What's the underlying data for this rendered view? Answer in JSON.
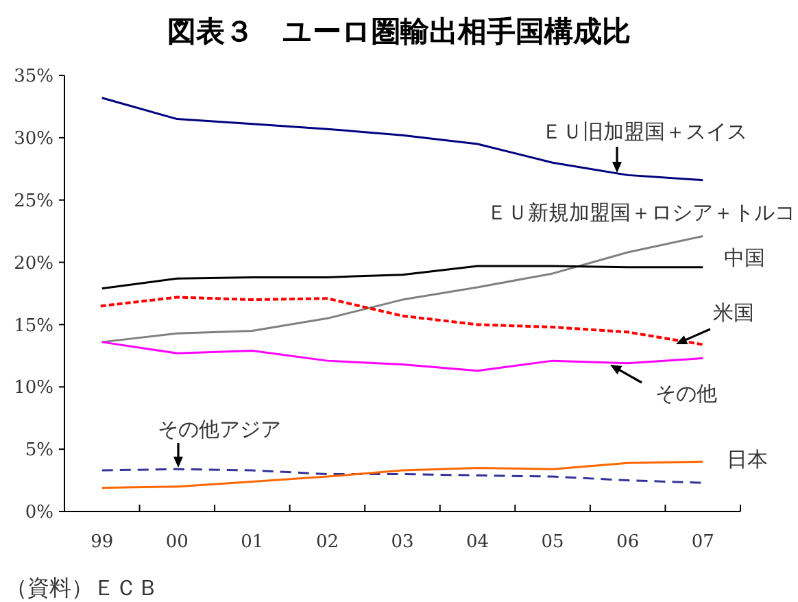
{
  "chart_data": {
    "type": "line",
    "title": "図表３　ユーロ圏輸出相手国構成比",
    "categories": [
      "99",
      "00",
      "01",
      "02",
      "03",
      "04",
      "05",
      "06",
      "07"
    ],
    "ylim": [
      0,
      35
    ],
    "yticks": [
      {
        "value": 0,
        "label": "0%"
      },
      {
        "value": 5,
        "label": "5%"
      },
      {
        "value": 10,
        "label": "10%"
      },
      {
        "value": 15,
        "label": "15%"
      },
      {
        "value": 20,
        "label": "20%"
      },
      {
        "value": 25,
        "label": "25%"
      },
      {
        "value": 30,
        "label": "30%"
      },
      {
        "value": 35,
        "label": "35%"
      }
    ],
    "grid": false,
    "marker": "none",
    "series": [
      {
        "name": "ＥＵ旧加盟国＋スイス",
        "color": "#000080",
        "line_style": "solid",
        "values": [
          33.2,
          31.5,
          31.1,
          30.7,
          30.2,
          29.5,
          28.0,
          27.0,
          26.6
        ]
      },
      {
        "name": "ＥＵ新規加盟国＋ロシア＋トルコ",
        "color": "#808080",
        "line_style": "solid",
        "values": [
          13.6,
          14.3,
          14.5,
          15.5,
          17.0,
          18.0,
          19.1,
          20.8,
          22.1
        ]
      },
      {
        "name": "中国",
        "color": "#000000",
        "line_style": "solid",
        "values": [
          17.9,
          18.7,
          18.8,
          18.8,
          19.0,
          19.7,
          19.7,
          19.6,
          19.6
        ]
      },
      {
        "name": "米国",
        "color": "#ff0000",
        "line_style": "dotted",
        "values": [
          16.5,
          17.2,
          17.0,
          17.1,
          15.7,
          15.0,
          14.8,
          14.4,
          13.4
        ]
      },
      {
        "name": "その他",
        "color": "#ff00ff",
        "line_style": "solid",
        "values": [
          13.6,
          12.7,
          12.9,
          12.1,
          11.8,
          11.3,
          12.1,
          11.9,
          12.3
        ]
      },
      {
        "name": "その他アジア",
        "color": "#333399",
        "line_style": "dashed",
        "values": [
          3.3,
          3.4,
          3.3,
          3.0,
          3.0,
          2.9,
          2.8,
          2.5,
          2.3
        ]
      },
      {
        "name": "日本",
        "color": "#ff6600",
        "line_style": "solid",
        "values": [
          1.9,
          2.0,
          2.4,
          2.8,
          3.3,
          3.5,
          3.4,
          3.9,
          4.0
        ]
      }
    ],
    "annotations": [
      "（資料）ＥＣＢ"
    ]
  }
}
